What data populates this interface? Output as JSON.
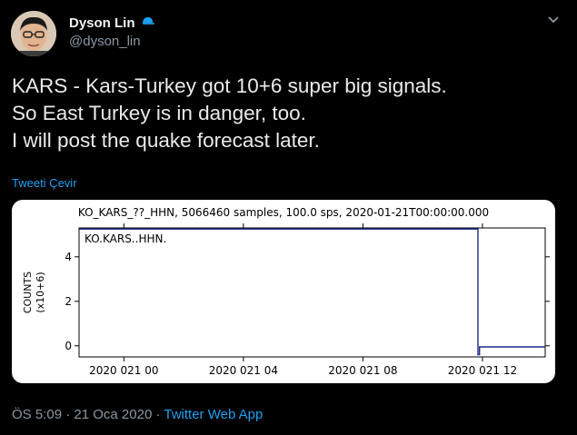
{
  "header": {
    "display_name": "Dyson Lin",
    "handle": "@dyson_lin",
    "cap_icon": "baseball-cap-icon",
    "menu_icon": "chevron-down-icon"
  },
  "tweet": {
    "lines": [
      "KARS - Kars-Turkey got 10+6 super big signals.",
      "So East Turkey is in danger, too.",
      "I will post the quake forecast later."
    ]
  },
  "translate_label": "Tweeti Çevir",
  "footer": {
    "time": "ÖS 5:09",
    "separator": "·",
    "date": "21 Oca 2020",
    "app": "Twitter Web App"
  },
  "chart_data": {
    "type": "line",
    "title": "KO_KARS_??_HHN, 5066460 samples, 100.0 sps, 2020-01-21T00:00:00.000",
    "annotation": "KO.KARS..HHN.",
    "ylabel_line1": "COUNTS",
    "ylabel_line2": "(x10+6)",
    "ylim": [
      -0.5,
      5.3
    ],
    "y_ticks": [
      {
        "value": 0,
        "label": "0"
      },
      {
        "value": 2,
        "label": "2"
      },
      {
        "value": 4,
        "label": "4"
      }
    ],
    "xlim": [
      -1.5,
      14.1
    ],
    "x_ticks": [
      {
        "value": 0,
        "label": "2020 021 00"
      },
      {
        "value": 4,
        "label": "2020 021 04"
      },
      {
        "value": 8,
        "label": "2020 021 08"
      },
      {
        "value": 12,
        "label": "2020 021 12"
      }
    ],
    "line_color": "#1f2a8a",
    "series": [
      {
        "x": [
          -1.5,
          -0.2,
          2,
          6,
          9,
          11.6,
          11.85,
          11.85,
          11.9,
          11.9,
          13,
          14.1
        ],
        "y": [
          5.25,
          5.25,
          5.25,
          5.25,
          5.25,
          5.25,
          5.25,
          -0.4,
          -0.4,
          -0.05,
          -0.05,
          -0.05
        ]
      }
    ]
  }
}
